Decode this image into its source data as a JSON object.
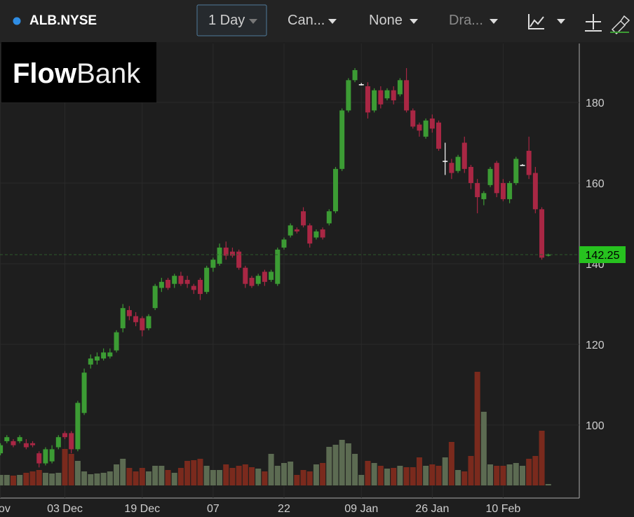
{
  "toolbar": {
    "symbol": "ALB.NYSE",
    "interval": "1 Day",
    "chart_type": "Can...",
    "indicator": "None",
    "drawing": "Dra..."
  },
  "logo": {
    "bold": "Flow",
    "light": "Bank"
  },
  "chart_data": {
    "type": "candlestick",
    "categories": [
      "Nov",
      null,
      null,
      null,
      null,
      null,
      null,
      null,
      null,
      null,
      "03 Dec",
      null,
      null,
      null,
      null,
      null,
      null,
      null,
      null,
      null,
      null,
      null,
      "19 Dec",
      null,
      null,
      null,
      null,
      null,
      null,
      null,
      null,
      null,
      null,
      "07",
      null,
      null,
      null,
      null,
      null,
      null,
      null,
      null,
      null,
      null,
      "22",
      null,
      null,
      null,
      null,
      null,
      null,
      null,
      null,
      null,
      null,
      null,
      "09 Jan",
      null,
      null,
      null,
      null,
      null,
      null,
      null,
      null,
      null,
      null,
      "26 Jan",
      null,
      null,
      null,
      null,
      null,
      null,
      null,
      null,
      null,
      null,
      "10 Feb",
      null,
      null,
      null,
      null,
      null,
      null,
      null
    ],
    "open": [
      93,
      96,
      96,
      96,
      95.5,
      95.5,
      93,
      90.5,
      91,
      94.5,
      98,
      98,
      94,
      103,
      115,
      116,
      116.5,
      117,
      118.5,
      124,
      128.5,
      127,
      126.5,
      124,
      129,
      134,
      136,
      135,
      137,
      136,
      134.5,
      136,
      133,
      139,
      140,
      144,
      143,
      143,
      139,
      136.5,
      135,
      138,
      136,
      135,
      144,
      147,
      148.5,
      153,
      149.5,
      146.5,
      148.5,
      150,
      153,
      163.5,
      178,
      185.5,
      184.5,
      184,
      178,
      183,
      181,
      183,
      182,
      185.5,
      178,
      174.5,
      171.5,
      176,
      175,
      165.5,
      165,
      163,
      170,
      164,
      160,
      156,
      159.5,
      165,
      160,
      156,
      160,
      164.5,
      168,
      162.5,
      153.5,
      142
    ],
    "high": [
      95.5,
      97.5,
      96.5,
      97.5,
      96.5,
      96,
      93.5,
      94.5,
      95,
      97.5,
      98.5,
      98.5,
      106,
      114,
      117.5,
      118,
      119,
      119,
      123.5,
      130,
      129.5,
      128,
      127,
      127.5,
      135,
      136.5,
      136.5,
      137.5,
      138,
      137,
      135,
      136.5,
      139.5,
      141.5,
      145,
      145.5,
      144,
      143.5,
      139.5,
      137,
      137.5,
      138.5,
      138.5,
      144,
      146.5,
      150,
      149,
      154,
      150,
      148.5,
      149,
      153.5,
      164,
      178.5,
      186,
      188.5,
      184.8,
      185,
      183.5,
      184,
      183.5,
      184,
      186,
      188.5,
      178.5,
      175,
      176,
      177,
      175.5,
      170,
      166,
      167,
      171.5,
      164.5,
      161,
      158,
      164,
      165.5,
      161,
      160.5,
      166.5,
      164.7,
      171.5,
      164,
      154,
      142.5
    ],
    "low": [
      92.5,
      95.5,
      94.5,
      95.5,
      94,
      94.5,
      89.5,
      90,
      90.5,
      94,
      96.5,
      93,
      93.5,
      102.5,
      114,
      115,
      116,
      116.5,
      118,
      123,
      126,
      124.5,
      122,
      123.5,
      128.5,
      133,
      133.5,
      134,
      134.5,
      134,
      132.5,
      131,
      132.5,
      138,
      139.5,
      141,
      141.5,
      138.5,
      134,
      134,
      134.5,
      134.5,
      135.5,
      134.5,
      143.5,
      146.5,
      147.5,
      149,
      144,
      146,
      146,
      149.5,
      152.5,
      163,
      177.5,
      185,
      184.2,
      176,
      177.5,
      178.5,
      180.5,
      179.5,
      181.5,
      177.5,
      173.5,
      171.5,
      171,
      172.5,
      168,
      162,
      161,
      162.5,
      162.5,
      158.5,
      152.5,
      154.5,
      159,
      156.5,
      155.5,
      155,
      159.5,
      164.3,
      161,
      152.5,
      141,
      141.8
    ],
    "close": [
      95,
      97,
      95,
      97,
      94.5,
      95,
      90.5,
      94,
      94,
      97,
      97,
      94,
      105.5,
      113,
      116.5,
      117,
      118,
      118,
      123,
      129,
      127,
      125.5,
      123.5,
      127,
      134.5,
      135.5,
      134,
      137,
      135,
      135,
      133.5,
      132.5,
      139,
      141,
      144,
      142,
      142,
      139,
      135,
      134.5,
      137,
      135.5,
      138,
      143.5,
      146,
      149.5,
      148,
      149.5,
      145,
      148,
      146.5,
      153,
      163.5,
      178,
      185.5,
      188,
      184.5,
      177.5,
      183,
      179.5,
      183,
      180.5,
      185.5,
      178,
      174,
      173,
      175.5,
      173.5,
      168.5,
      165.5,
      162.5,
      166.5,
      163.5,
      160,
      156.5,
      157.5,
      163.5,
      157.5,
      156,
      160,
      166,
      164.5,
      162,
      153.5,
      141.5,
      142.25
    ],
    "volume": [
      15,
      15,
      14,
      15,
      18,
      20,
      22,
      18,
      17,
      18,
      52,
      45,
      35,
      20,
      16,
      17,
      18,
      20,
      30,
      38,
      25,
      20,
      25,
      20,
      28,
      28,
      22,
      18,
      25,
      35,
      36,
      38,
      28,
      22,
      22,
      30,
      25,
      28,
      30,
      26,
      24,
      20,
      45,
      28,
      32,
      34,
      15,
      22,
      20,
      30,
      32,
      55,
      58,
      65,
      60,
      45,
      15,
      35,
      32,
      28,
      24,
      25,
      28,
      26,
      26,
      40,
      28,
      30,
      28,
      40,
      62,
      22,
      20,
      42,
      162,
      105,
      30,
      28,
      28,
      30,
      32,
      28,
      38,
      42,
      78,
      2
    ],
    "last_price": 142.25,
    "ylim": [
      81.9,
      194.6
    ],
    "yticks": [
      100,
      120,
      140,
      160,
      180
    ],
    "grid": true,
    "up_color": "#3c9c34",
    "down_color": "#a92744",
    "flat_color": "#ffffff",
    "volume_up_color": "#5c6b52",
    "volume_down_color": "#7a2a1d",
    "price_color": "#27c21f"
  }
}
